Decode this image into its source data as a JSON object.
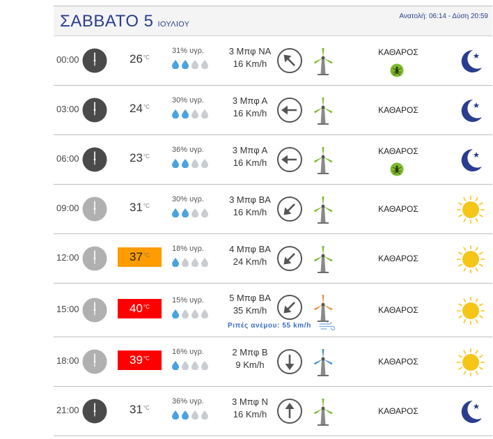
{
  "day": {
    "title": "ΣΑΒΒΑΤΟ 5",
    "month": "ΙΟΥΛΙΟΥ",
    "sun_info": "Ανατολή: 06:14  - Δύση 20:59"
  },
  "temp_unit": "°C",
  "colors": {
    "title": "#2b3d8f",
    "hot": "#ff9c00",
    "very_hot": "#ff0000",
    "drop_full": "#4aa3df",
    "drop_empty": "#c9cdd1",
    "turbine_green": "#7cbb2a",
    "moon": "#2b3d8f",
    "sun": "#f5c518"
  },
  "rows": [
    {
      "time": "00:00",
      "clock": "dark-clock-icon",
      "temp": "26",
      "temp_level": "normal",
      "humidity": "31% υγρ.",
      "drops_full": 2,
      "beaufort": "3 Μπφ ΝΑ",
      "speed": "16 Km/h",
      "arrow": "arrow-up-left-icon",
      "turbine": "green-turbine-icon",
      "sky": "ΚΑΘΑΡΟΣ",
      "mosquito": true,
      "weather": "moon-icon"
    },
    {
      "time": "03:00",
      "clock": "dark-clock-icon",
      "temp": "24",
      "temp_level": "normal",
      "humidity": "30% υγρ.",
      "drops_full": 2,
      "beaufort": "3 Μπφ Α",
      "speed": "16 Km/h",
      "arrow": "arrow-left-icon",
      "turbine": "green-turbine-icon",
      "sky": "ΚΑΘΑΡΟΣ",
      "mosquito": false,
      "weather": "moon-icon"
    },
    {
      "time": "06:00",
      "clock": "dark-clock-icon",
      "temp": "23",
      "temp_level": "normal",
      "humidity": "36% υγρ.",
      "drops_full": 2,
      "beaufort": "3 Μπφ Α",
      "speed": "16 Km/h",
      "arrow": "arrow-left-icon",
      "turbine": "green-turbine-icon",
      "sky": "ΚΑΘΑΡΟΣ",
      "mosquito": true,
      "weather": "moon-icon"
    },
    {
      "time": "09:00",
      "clock": "light-clock-icon",
      "temp": "31",
      "temp_level": "normal",
      "humidity": "30% υγρ.",
      "drops_full": 2,
      "beaufort": "3 Μπφ ΒΑ",
      "speed": "16 Km/h",
      "arrow": "arrow-down-left-icon",
      "turbine": "green-turbine-icon",
      "sky": "ΚΑΘΑΡΟΣ",
      "mosquito": false,
      "weather": "sun-icon"
    },
    {
      "time": "12:00",
      "clock": "light-clock-icon",
      "temp": "37",
      "temp_level": "hot",
      "humidity": "18% υγρ.",
      "drops_full": 1,
      "beaufort": "4 Μπφ ΒΑ",
      "speed": "24 Km/h",
      "arrow": "arrow-down-left-icon",
      "turbine": "green-turbine-icon",
      "sky": "ΚΑΘΑΡΟΣ",
      "mosquito": false,
      "weather": "sun-icon"
    },
    {
      "time": "15:00",
      "clock": "light-clock-icon",
      "temp": "40",
      "temp_level": "very_hot",
      "humidity": "15% υγρ.",
      "drops_full": 1,
      "beaufort": "5 Μπφ ΒΑ",
      "speed": "35 Km/h",
      "gust": "Ριπές ανέμου: 55 km/h",
      "arrow": "arrow-down-left-icon",
      "turbine": "orange-turbine-icon",
      "sky": "ΚΑΘΑΡΟΣ",
      "mosquito": false,
      "weather": "sun-icon"
    },
    {
      "time": "18:00",
      "clock": "light-clock-icon",
      "temp": "39",
      "temp_level": "very_hot",
      "humidity": "16% υγρ.",
      "drops_full": 1,
      "beaufort": "2 Μπφ Β",
      "speed": "9 Km/h",
      "arrow": "arrow-down-icon",
      "turbine": "blue-turbine-icon",
      "sky": "ΚΑΘΑΡΟΣ",
      "mosquito": false,
      "weather": "sun-icon"
    },
    {
      "time": "21:00",
      "clock": "dark-clock-icon",
      "temp": "31",
      "temp_level": "normal",
      "humidity": "36% υγρ.",
      "drops_full": 2,
      "beaufort": "3 Μπφ Ν",
      "speed": "16 Km/h",
      "arrow": "arrow-up-icon",
      "turbine": "green-turbine-icon",
      "sky": "ΚΑΘΑΡΟΣ",
      "mosquito": false,
      "weather": "moon-icon"
    }
  ]
}
